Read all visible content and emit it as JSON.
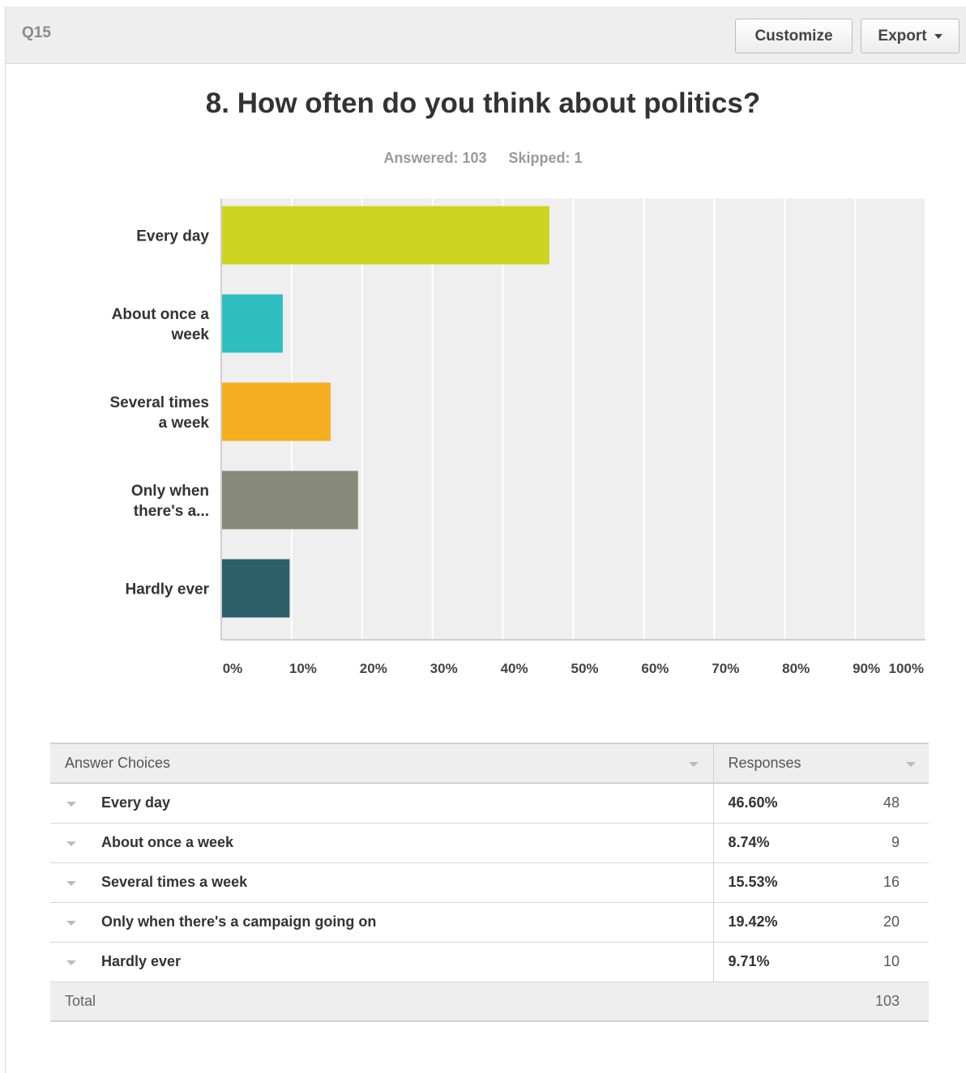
{
  "header": {
    "question_number": "Q15",
    "customize_label": "Customize",
    "export_label": "Export"
  },
  "question": {
    "title": "8. How often do you think about politics?",
    "answered": "Answered: 103",
    "skipped": "Skipped: 1"
  },
  "chart_data": {
    "type": "bar",
    "orientation": "horizontal",
    "categories": [
      "Every day",
      "About once a week",
      "Several times a week",
      "Only when there's a...",
      "Hardly ever"
    ],
    "category_display_lines": [
      [
        "Every day"
      ],
      [
        "About once a",
        "week"
      ],
      [
        "Several times",
        "a week"
      ],
      [
        "Only when",
        "there's a..."
      ],
      [
        "Hardly ever"
      ]
    ],
    "values": [
      46.6,
      8.74,
      15.53,
      19.42,
      9.71
    ],
    "colors": [
      "#cdd522",
      "#30bfc0",
      "#f5ae20",
      "#878a78",
      "#2d5f6b"
    ],
    "xlim": [
      0,
      100
    ],
    "xticks": [
      "0%",
      "10%",
      "20%",
      "30%",
      "40%",
      "50%",
      "60%",
      "70%",
      "80%",
      "90%",
      "100%"
    ],
    "grid": true,
    "xlabel": "",
    "ylabel": ""
  },
  "table": {
    "col_choices": "Answer Choices",
    "col_responses": "Responses",
    "rows": [
      {
        "choice": "Every day",
        "pct": "46.60%",
        "count": "48"
      },
      {
        "choice": "About once a week",
        "pct": "8.74%",
        "count": "9"
      },
      {
        "choice": "Several times a week",
        "pct": "15.53%",
        "count": "16"
      },
      {
        "choice": "Only when there's a campaign going on",
        "pct": "19.42%",
        "count": "20"
      },
      {
        "choice": "Hardly ever",
        "pct": "9.71%",
        "count": "10"
      }
    ],
    "total_label": "Total",
    "total_count": "103"
  },
  "colors": {
    "header_bg": "#eeeeee",
    "plot_bg": "#efefef"
  }
}
